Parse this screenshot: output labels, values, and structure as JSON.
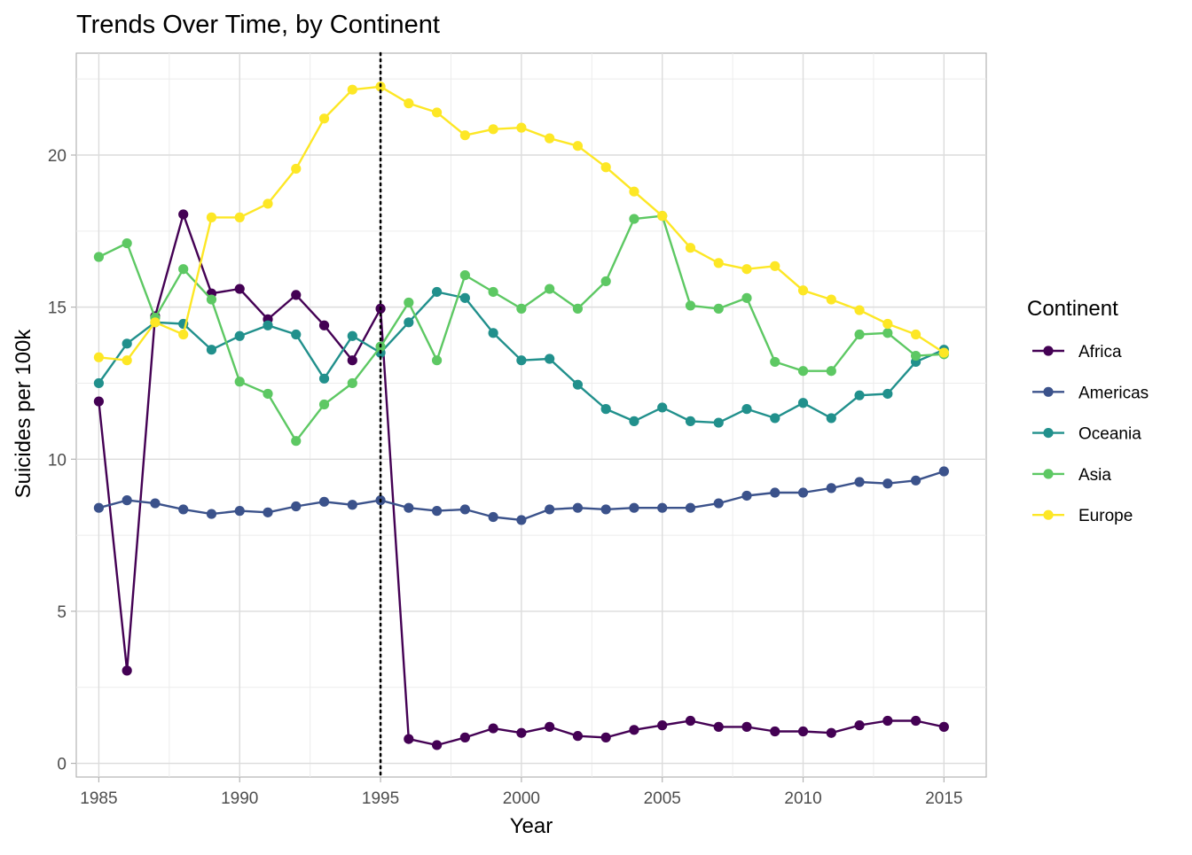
{
  "chart_data": {
    "type": "line",
    "title": "Trends Over Time, by Continent",
    "xlabel": "Year",
    "ylabel": "Suicides per 100k",
    "xlim": [
      1984.2,
      2016.5
    ],
    "ylim": [
      -0.45,
      23.35
    ],
    "x_ticks": [
      1985,
      1990,
      1995,
      2000,
      2005,
      2010,
      2015
    ],
    "y_ticks": [
      0,
      5,
      10,
      15,
      20
    ],
    "grid": true,
    "legend_position": "right",
    "legend_title": "Continent",
    "reference_line": {
      "x": 1995,
      "style": "dotted"
    },
    "x": [
      1985,
      1986,
      1987,
      1988,
      1989,
      1990,
      1991,
      1992,
      1993,
      1994,
      1995,
      1996,
      1997,
      1998,
      1999,
      2000,
      2001,
      2002,
      2003,
      2004,
      2005,
      2006,
      2007,
      2008,
      2009,
      2010,
      2011,
      2012,
      2013,
      2014,
      2015
    ],
    "series": [
      {
        "name": "Africa",
        "color": "#440154",
        "values": [
          11.9,
          3.05,
          14.7,
          18.05,
          15.45,
          15.6,
          14.6,
          15.4,
          14.4,
          13.25,
          14.95,
          0.8,
          0.6,
          0.85,
          1.15,
          1.0,
          1.2,
          0.9,
          0.85,
          1.1,
          1.25,
          1.4,
          1.2,
          1.2,
          1.05,
          1.05,
          1.0,
          1.25,
          1.4,
          1.4,
          1.2
        ]
      },
      {
        "name": "Americas",
        "color": "#3B528B",
        "values": [
          8.4,
          8.65,
          8.55,
          8.35,
          8.2,
          8.3,
          8.25,
          8.45,
          8.6,
          8.5,
          8.65,
          8.4,
          8.3,
          8.35,
          8.1,
          8.0,
          8.35,
          8.4,
          8.35,
          8.4,
          8.4,
          8.4,
          8.55,
          8.8,
          8.9,
          8.9,
          9.05,
          9.25,
          9.2,
          9.3,
          9.6
        ]
      },
      {
        "name": "Oceania",
        "color": "#21908C",
        "values": [
          12.5,
          13.8,
          14.5,
          14.45,
          13.6,
          14.05,
          14.4,
          14.1,
          12.65,
          14.05,
          13.5,
          14.5,
          15.5,
          15.3,
          14.15,
          13.25,
          13.3,
          12.45,
          11.65,
          11.25,
          11.7,
          11.25,
          11.2,
          11.65,
          11.35,
          11.85,
          11.35,
          12.1,
          12.15,
          13.2,
          13.6
        ]
      },
      {
        "name": "Asia",
        "color": "#5DC863",
        "values": [
          16.65,
          17.1,
          14.65,
          16.25,
          15.25,
          12.55,
          12.15,
          10.6,
          11.8,
          12.5,
          13.7,
          15.15,
          13.25,
          16.05,
          15.5,
          14.95,
          15.6,
          14.95,
          15.85,
          17.9,
          18.0,
          15.05,
          14.95,
          15.3,
          13.2,
          12.9,
          12.9,
          14.1,
          14.15,
          13.4,
          13.45
        ]
      },
      {
        "name": "Europe",
        "color": "#FDE725",
        "values": [
          13.35,
          13.25,
          14.5,
          14.1,
          17.95,
          17.95,
          18.4,
          19.55,
          21.2,
          22.15,
          22.25,
          21.7,
          21.4,
          20.65,
          20.85,
          20.9,
          20.55,
          20.3,
          19.6,
          18.8,
          18.0,
          16.95,
          16.45,
          16.25,
          16.35,
          15.55,
          15.25,
          14.9,
          14.45,
          14.1,
          13.5
        ]
      }
    ]
  }
}
